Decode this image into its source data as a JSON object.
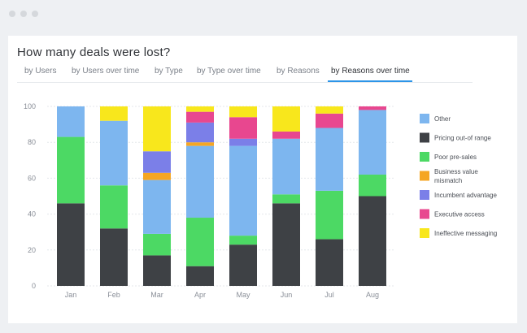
{
  "window": {
    "controls": [
      "close",
      "minimize",
      "maximize"
    ]
  },
  "title": "How many deals were lost?",
  "tabs": [
    {
      "label": "by Users",
      "active": false
    },
    {
      "label": "by Users over time",
      "active": false
    },
    {
      "label": "by Type",
      "active": false
    },
    {
      "label": "by Type over time",
      "active": false
    },
    {
      "label": "by Reasons",
      "active": false
    },
    {
      "label": "by Reasons over time",
      "active": true
    }
  ],
  "colors": {
    "accent": "#2d95e8",
    "card": "#ffffff",
    "background": "#eef0f3"
  },
  "chart_data": {
    "type": "bar",
    "stacked": true,
    "categories": [
      "Jan",
      "Feb",
      "Mar",
      "Apr",
      "May",
      "Jun",
      "Jul",
      "Aug"
    ],
    "ylim": [
      0,
      100
    ],
    "yticks": [
      0,
      20,
      40,
      60,
      80,
      100
    ],
    "grid": true,
    "legend_position": "right",
    "series": [
      {
        "name": "Pricing out-of range",
        "color": "#3e4145",
        "values": [
          46,
          32,
          17,
          11,
          23,
          46,
          26,
          50
        ]
      },
      {
        "name": "Poor pre-sales",
        "color": "#4cd964",
        "values": [
          37,
          24,
          12,
          27,
          5,
          5,
          27,
          12
        ]
      },
      {
        "name": "Other",
        "color": "#7db6ef",
        "values": [
          17,
          36,
          30,
          40,
          50,
          31,
          35,
          36
        ]
      },
      {
        "name": "Business value mismatch",
        "color": "#f5a623",
        "values": [
          0,
          0,
          4,
          2,
          0,
          0,
          0,
          0
        ]
      },
      {
        "name": "Incumbent advantage",
        "color": "#7b7fe8",
        "values": [
          0,
          0,
          12,
          11,
          4,
          0,
          0,
          0
        ]
      },
      {
        "name": "Executive access",
        "color": "#e8478f",
        "values": [
          0,
          0,
          0,
          6,
          12,
          4,
          8,
          2
        ]
      },
      {
        "name": "Ineffective messaging",
        "color": "#f8e71c",
        "values": [
          0,
          8,
          25,
          3,
          6,
          14,
          4,
          0
        ]
      }
    ],
    "legend": [
      {
        "label": "Other",
        "color": "#7db6ef"
      },
      {
        "label": "Pricing out-of range",
        "color": "#3e4145"
      },
      {
        "label": "Poor pre-sales",
        "color": "#4cd964"
      },
      {
        "label": "Business value\nmismatch",
        "color": "#f5a623"
      },
      {
        "label": "Incumbent advantage",
        "color": "#7b7fe8"
      },
      {
        "label": "Executive access",
        "color": "#e8478f"
      },
      {
        "label": "Ineffective messaging",
        "color": "#f8e71c"
      }
    ]
  }
}
